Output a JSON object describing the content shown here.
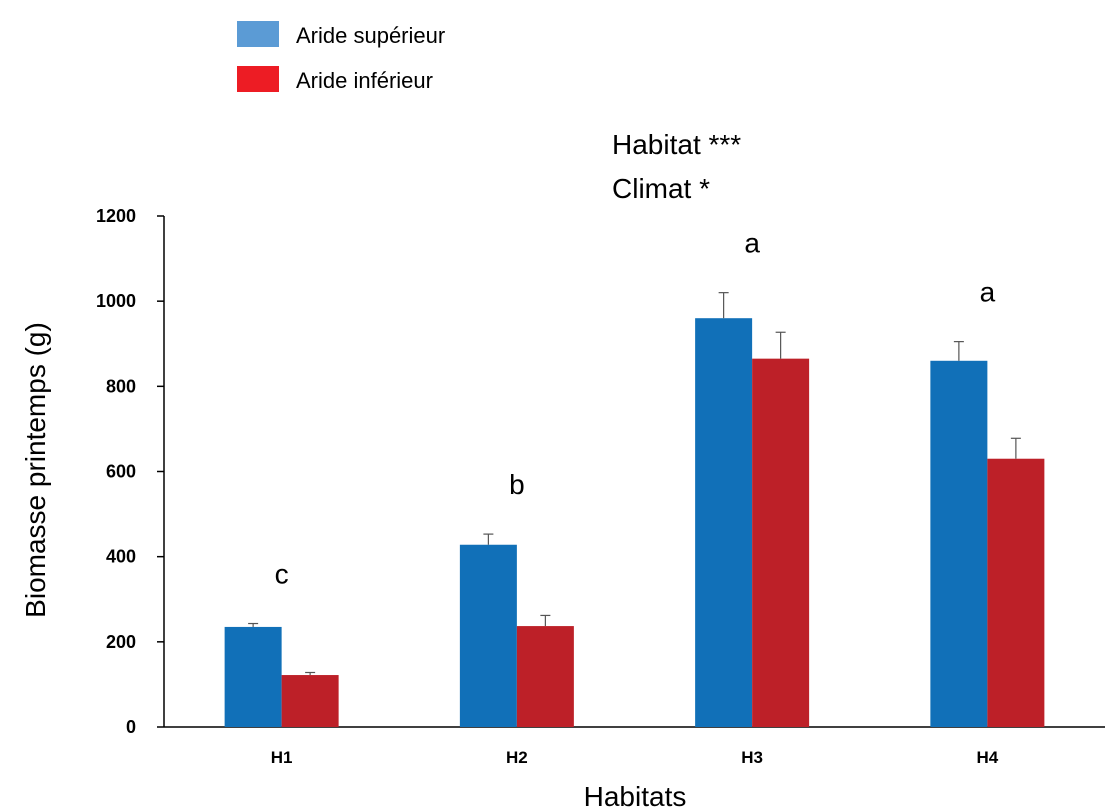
{
  "chart_data": {
    "type": "bar",
    "categories": [
      "H1",
      "H2",
      "H3",
      "H4"
    ],
    "series": [
      {
        "name": "Aride supérieur",
        "color": "#1170B8",
        "legend_color": "#5B9BD5",
        "values": [
          235,
          428,
          960,
          860
        ],
        "errors": [
          8,
          25,
          60,
          45
        ]
      },
      {
        "name": "Aride inférieur",
        "color": "#BD2028",
        "legend_color": "#ED1C24",
        "values": [
          122,
          237,
          865,
          630
        ],
        "errors": [
          6,
          25,
          62,
          48
        ]
      }
    ],
    "group_letters": [
      "c",
      "b",
      "a",
      "a"
    ],
    "annotations": [
      "Habitat ***",
      "Climat *"
    ],
    "xlabel": "Habitats",
    "ylabel": "Biomasse printemps (g)",
    "ylim": [
      0,
      1200
    ],
    "yticks": [
      0,
      200,
      400,
      600,
      800,
      1000,
      1200
    ],
    "grid": false,
    "legend_position": "top-left"
  }
}
